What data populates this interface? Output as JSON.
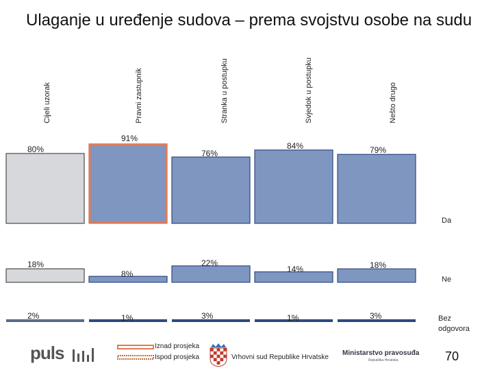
{
  "title": "Ulaganje u uređenje sudova – prema svojstvu osobe na sudu",
  "chart_data": {
    "type": "bar",
    "stacked": true,
    "categories": [
      "Cijeli uzorak",
      "Pravni zastupnik",
      "Stranka u postupku",
      "Svjedok u postupku",
      "Nešto drugo"
    ],
    "series": [
      {
        "name": "Da",
        "values": [
          80,
          91,
          76,
          84,
          79
        ],
        "labels": [
          "80%",
          "91%",
          "76%",
          "84%",
          "79%"
        ]
      },
      {
        "name": "Ne",
        "values": [
          18,
          8,
          22,
          14,
          18
        ],
        "labels": [
          "18%",
          "8%",
          "22%",
          "14%",
          "18%"
        ]
      },
      {
        "name": "Bez odgovora",
        "values": [
          2,
          1,
          3,
          1,
          3
        ],
        "labels": [
          "2%",
          "1%",
          "3%",
          "1%",
          "3%"
        ]
      }
    ],
    "highlight": [
      "none",
      "above",
      "none",
      "none",
      "none"
    ],
    "colors": {
      "bar": "#7f96c0",
      "bar_edge": "#2e4a80",
      "sample_bar": "#d6d8db",
      "sample_edge": "#4a4a4a",
      "above_avg_border": "#e07a55",
      "below_avg_border": "#c0703c"
    }
  },
  "legend": {
    "above": "Iznad prosjeka",
    "below": "Ispod prosjeka"
  },
  "footer": {
    "brand": "puls",
    "court": "Vrhovni sud Republike Hrvatske",
    "ministry": "Ministarstvo pravosuđa",
    "ministry_sub": "Republika Hrvatska",
    "page": "70"
  }
}
